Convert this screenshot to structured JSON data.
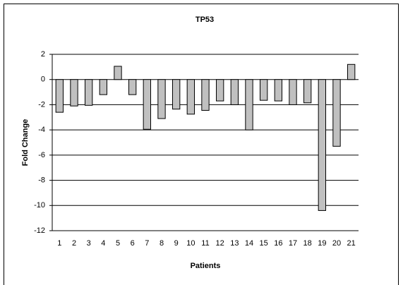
{
  "chart_data": {
    "type": "bar",
    "title": "TP53",
    "x_label": "Patients",
    "y_label": "Fold Change",
    "categories": [
      "1",
      "2",
      "3",
      "4",
      "5",
      "6",
      "7",
      "8",
      "9",
      "10",
      "11",
      "12",
      "13",
      "14",
      "15",
      "16",
      "17",
      "18",
      "19",
      "20",
      "21"
    ],
    "values": [
      -2.6,
      -2.1,
      -2.05,
      -1.2,
      1.05,
      -1.2,
      -3.95,
      -3.1,
      -2.35,
      -2.75,
      -2.45,
      -1.7,
      -2.0,
      -4.0,
      -1.65,
      -1.7,
      -2.0,
      -1.85,
      -10.4,
      -5.3,
      1.2
    ],
    "color": "#c0c0c0",
    "ylim": [
      -12,
      2
    ],
    "yticks": [
      -12,
      -10,
      -8,
      -6,
      -4,
      -2,
      0,
      2
    ],
    "grid": true
  }
}
